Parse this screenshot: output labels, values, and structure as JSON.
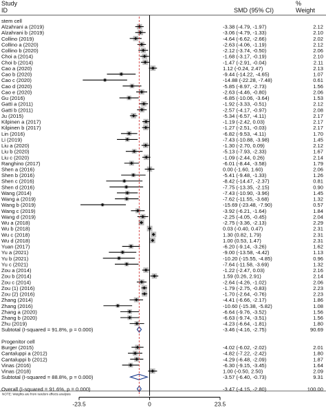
{
  "chart_data": {
    "type": "forest",
    "header": {
      "study_line1": "Study",
      "study_line2": "ID",
      "effect": "SMD (95% CI)",
      "weight_line1": "%",
      "weight_line2": "Weight"
    },
    "null_value": 0,
    "xlim": [
      -23.5,
      23.5
    ],
    "xticks": [
      -23.5,
      0,
      23.5
    ],
    "xtick_labels": [
      "-23.5",
      "0",
      "23.5"
    ],
    "overall_es": -3.47,
    "note": "NOTE: Weights are from random effects analysis",
    "rows": [
      {
        "type": "group",
        "label": "stem cell"
      },
      {
        "type": "study",
        "label": "Alzahrani a (2019)",
        "es": -3.38,
        "lo": -4.79,
        "hi": -1.97,
        "es_text": "-3.38 (-4.79, -1.97)",
        "weight": "2.12"
      },
      {
        "type": "study",
        "label": "Alzahrani b (2019)",
        "es": -3.06,
        "lo": -4.79,
        "hi": -1.33,
        "es_text": "-3.06 (-4.79, -1.33)",
        "weight": "2.10"
      },
      {
        "type": "study",
        "label": "Collino (2019)",
        "es": -4.64,
        "lo": -6.62,
        "hi": -2.66,
        "es_text": "-4.64 (-6.62, -2.66)",
        "weight": "2.02"
      },
      {
        "type": "study",
        "label": "Collino a (2020)",
        "es": -2.63,
        "lo": -4.06,
        "hi": -1.19,
        "es_text": "-2.63 (-4.06, -1.19)",
        "weight": "2.12"
      },
      {
        "type": "study",
        "label": "Collino b (2020)",
        "es": -2.12,
        "lo": -3.74,
        "hi": -0.5,
        "es_text": "-2.12 (-3.74, -0.50)",
        "weight": "2.06"
      },
      {
        "type": "study",
        "label": "Choi a (2014)",
        "es": -1.68,
        "lo": -3.17,
        "hi": -0.19,
        "es_text": "-1.68 (-3.17, -0.19)",
        "weight": "2.10"
      },
      {
        "type": "study",
        "label": "Choi b (2014)",
        "es": -1.47,
        "lo": -2.91,
        "hi": -0.04,
        "es_text": "-1.47 (-2.91, -0.04)",
        "weight": "2.11"
      },
      {
        "type": "study",
        "label": "Cao a (2020)",
        "es": 1.12,
        "lo": -0.24,
        "hi": 2.47,
        "es_text": "1.12 (-0.24, 2.47)",
        "weight": "2.13"
      },
      {
        "type": "study",
        "label": "Cao b (2020)",
        "es": -9.44,
        "lo": -14.22,
        "hi": -4.65,
        "es_text": "-9.44 (-14.22, -4.65)",
        "weight": "1.07"
      },
      {
        "type": "study",
        "label": "Cao c (2020)",
        "es": -14.88,
        "lo": -22.28,
        "hi": -7.48,
        "es_text": "-14.88 (-22.28, -7.48)",
        "weight": "0.61"
      },
      {
        "type": "study",
        "label": "Cao d (2020)",
        "es": -5.85,
        "lo": -8.97,
        "hi": -2.73,
        "es_text": "-5.85 (-8.97, -2.73)",
        "weight": "1.56"
      },
      {
        "type": "study",
        "label": "Cao e (2020)",
        "es": -2.63,
        "lo": -4.46,
        "hi": -0.8,
        "es_text": "-2.63 (-4.46, -0.80)",
        "weight": "2.06"
      },
      {
        "type": "study",
        "label": "Gu (2016)",
        "es": -6.85,
        "lo": -10.06,
        "hi": -3.64,
        "es_text": "-6.85 (-10.06, -3.64)",
        "weight": "1.53"
      },
      {
        "type": "study",
        "label": "Gatti a (2011)",
        "es": -1.92,
        "lo": -3.33,
        "hi": -0.51,
        "es_text": "-1.92 (-3.33, -0.51)",
        "weight": "2.12"
      },
      {
        "type": "study",
        "label": "Gatti b (2011)",
        "es": -2.57,
        "lo": -4.17,
        "hi": -0.97,
        "es_text": "-2.57 (-4.17, -0.97)",
        "weight": "2.08"
      },
      {
        "type": "study",
        "label": "Ju (2015)",
        "es": -5.34,
        "lo": -6.57,
        "hi": -4.11,
        "es_text": "-5.34 (-6.57, -4.11)",
        "weight": "2.17"
      },
      {
        "type": "study",
        "label": "Kilpinen a (2017)",
        "es": -1.19,
        "lo": -2.42,
        "hi": 0.03,
        "es_text": "-1.19 (-2.42, 0.03)",
        "weight": "2.17"
      },
      {
        "type": "study",
        "label": "Kilpinen b (2017)",
        "es": -1.27,
        "lo": -2.51,
        "hi": -0.03,
        "es_text": "-1.27 (-2.51, -0.03)",
        "weight": "2.17"
      },
      {
        "type": "study",
        "label": "Lin (2016)",
        "es": -6.82,
        "lo": -9.53,
        "hi": -4.11,
        "es_text": "-6.82 (-9.53, -4.11)",
        "weight": "1.70"
      },
      {
        "type": "study",
        "label": "Li (2019)",
        "es": -7.43,
        "lo": -10.88,
        "hi": -3.98,
        "es_text": "-7.43 (-10.88, -3.98)",
        "weight": "1.45"
      },
      {
        "type": "study",
        "label": "Liu a (2020)",
        "es": -1.3,
        "lo": -2.7,
        "hi": 0.09,
        "es_text": "-1.30 (-2.70, 0.09)",
        "weight": "2.12"
      },
      {
        "type": "study",
        "label": "Liu b (2020)",
        "es": -5.13,
        "lo": -7.93,
        "hi": -2.33,
        "es_text": "-5.13 (-7.93, -2.33)",
        "weight": "1.67"
      },
      {
        "type": "study",
        "label": "Liu c (2020)",
        "es": -1.09,
        "lo": -2.44,
        "hi": 0.26,
        "es_text": "-1.09 (-2.44, 0.26)",
        "weight": "2.14"
      },
      {
        "type": "study",
        "label": "Ranghino (2017)",
        "es": -6.01,
        "lo": -8.44,
        "hi": -3.58,
        "es_text": "-6.01 (-8.44, -3.58)",
        "weight": "1.79"
      },
      {
        "type": "study",
        "label": "Shen a (2016)",
        "es": 0.0,
        "lo": -1.6,
        "hi": 1.6,
        "es_text": "0.00 (-1.60, 1.60)",
        "weight": "2.06"
      },
      {
        "type": "study",
        "label": "Shen b (2016)",
        "es": -5.41,
        "lo": -9.48,
        "hi": -1.33,
        "es_text": "-5.41 (-9.48, -1.33)",
        "weight": "1.26"
      },
      {
        "type": "study",
        "label": "Shen c (2016)",
        "es": -8.42,
        "lo": -14.47,
        "hi": -2.37,
        "es_text": "-8.42 (-14.47, -2.37)",
        "weight": "0.81"
      },
      {
        "type": "study",
        "label": "Shen d (2016)",
        "es": -7.75,
        "lo": -13.35,
        "hi": -2.15,
        "es_text": "-7.75 (-13.35, -2.15)",
        "weight": "0.90"
      },
      {
        "type": "study",
        "label": "Wang (2014)",
        "es": -7.43,
        "lo": -10.9,
        "hi": -3.96,
        "es_text": "-7.43 (-10.90, -3.96)",
        "weight": "1.45"
      },
      {
        "type": "study",
        "label": "Wang  a (2019)",
        "es": -7.62,
        "lo": -11.55,
        "hi": -3.68,
        "es_text": "-7.62 (-11.55, -3.68)",
        "weight": "1.32"
      },
      {
        "type": "study",
        "label": "Wang  b (2019)",
        "es": -15.69,
        "lo": -23.48,
        "hi": -7.9,
        "es_text": "-15.69 (-23.48, -7.90)",
        "weight": "0.57"
      },
      {
        "type": "study",
        "label": "Wang  c (2019)",
        "es": -3.92,
        "lo": -6.21,
        "hi": -1.64,
        "es_text": "-3.92 (-6.21, -1.64)",
        "weight": "1.84"
      },
      {
        "type": "study",
        "label": "Wang  d (2019)",
        "es": -2.25,
        "lo": -4.05,
        "hi": -0.45,
        "es_text": "-2.25 (-4.05, -0.45)",
        "weight": "2.04"
      },
      {
        "type": "study",
        "label": "Wu a (2018)",
        "es": -2.75,
        "lo": -3.36,
        "hi": -2.13,
        "es_text": "-2.75 (-3.36, -2.13)",
        "weight": "2.29"
      },
      {
        "type": "study",
        "label": "Wu b (2018)",
        "es": 0.03,
        "lo": -0.4,
        "hi": 0.47,
        "es_text": "0.03 (-0.40, 0.47)",
        "weight": "2.31"
      },
      {
        "type": "study",
        "label": "Wu c (2018)",
        "es": 1.3,
        "lo": 0.82,
        "hi": 1.79,
        "es_text": "1.30 (0.82, 1.79)",
        "weight": "2.31"
      },
      {
        "type": "study",
        "label": "Wu d (2018)",
        "es": 1.0,
        "lo": 0.53,
        "hi": 1.47,
        "es_text": "1.00 (0.53, 1.47)",
        "weight": "2.31"
      },
      {
        "type": "study",
        "label": "Yuan (2017)",
        "es": -6.2,
        "lo": -9.14,
        "hi": -3.26,
        "es_text": "-6.20 (-9.14, -3.26)",
        "weight": "1.62"
      },
      {
        "type": "study",
        "label": "Yu a (2021)",
        "es": -9.0,
        "lo": -13.58,
        "hi": -4.42,
        "es_text": "-9.00 (-13.58, -4.42)",
        "weight": "1.13"
      },
      {
        "type": "study",
        "label": "Yu b (2021)",
        "es": -10.2,
        "lo": -15.55,
        "hi": -4.85,
        "es_text": "-10.20 (-15.55, -4.85)",
        "weight": "0.96"
      },
      {
        "type": "study",
        "label": "Yu c (2021)",
        "es": -7.64,
        "lo": -11.58,
        "hi": -3.69,
        "es_text": "-7.64 (-11.58, -3.69)",
        "weight": "1.32"
      },
      {
        "type": "study",
        "label": "Zou a (2014)",
        "es": -1.22,
        "lo": -2.47,
        "hi": 0.03,
        "es_text": "-1.22 (-2.47, 0.03)",
        "weight": "2.16"
      },
      {
        "type": "study",
        "label": "Zou b (2014)",
        "es": 1.59,
        "lo": 0.26,
        "hi": 2.91,
        "es_text": "1.59 (0.26, 2.91)",
        "weight": "2.14"
      },
      {
        "type": "study",
        "label": "Zou c (2014)",
        "es": -2.64,
        "lo": -4.26,
        "hi": -1.02,
        "es_text": "-2.64 (-4.26, -1.02)",
        "weight": "2.06"
      },
      {
        "type": "study",
        "label": "Zou (1) (2016)",
        "es": -1.79,
        "lo": -2.75,
        "hi": -0.83,
        "es_text": "-1.79 (-2.75, -0.83)",
        "weight": "2.23"
      },
      {
        "type": "study",
        "label": "Zou (2) (2016)",
        "es": -1.7,
        "lo": -2.64,
        "hi": -0.76,
        "es_text": "-1.70 (-2.64, -0.76)",
        "weight": "2.23"
      },
      {
        "type": "study",
        "label": "Zhang (2014)",
        "es": -4.41,
        "lo": -6.66,
        "hi": -2.17,
        "es_text": "-4.41 (-6.66, -2.17)",
        "weight": "1.86"
      },
      {
        "type": "study",
        "label": "Zhang (2016)",
        "es": -10.6,
        "lo": -15.38,
        "hi": -5.82,
        "es_text": "-10.60 (-15.38, -5.82)",
        "weight": "1.08"
      },
      {
        "type": "study",
        "label": "Zhang a (2020)",
        "es": -6.64,
        "lo": -9.76,
        "hi": -3.52,
        "es_text": "-6.64 (-9.76, -3.52)",
        "weight": "1.56"
      },
      {
        "type": "study",
        "label": "Zhang b (2020)",
        "es": -6.63,
        "lo": -9.74,
        "hi": -3.51,
        "es_text": "-6.63 (-9.74, -3.51)",
        "weight": "1.56"
      },
      {
        "type": "study",
        "label": "Zhu (2019)",
        "es": -4.23,
        "lo": -6.64,
        "hi": -1.81,
        "es_text": "-4.23 (-6.64, -1.81)",
        "weight": "1.80"
      },
      {
        "type": "subtotal",
        "label": "Subtotal  (I-squared = 91.8%, p = 0.000)",
        "es": -3.46,
        "lo": -4.16,
        "hi": -2.75,
        "es_text": "-3.46 (-4.16, -2.75)",
        "weight": "90.69"
      },
      {
        "type": "blank"
      },
      {
        "type": "group",
        "label": "Progenitor cell"
      },
      {
        "type": "study",
        "label": "Burger (2015)",
        "es": -4.02,
        "lo": -6.02,
        "hi": -2.02,
        "es_text": "-4.02 (-6.02, -2.02)",
        "weight": "2.01"
      },
      {
        "type": "study",
        "label": "Cantaluppi a (2012)",
        "es": -4.82,
        "lo": -7.22,
        "hi": -2.42,
        "es_text": "-4.82 (-7.22, -2.42)",
        "weight": "1.80"
      },
      {
        "type": "study",
        "label": "Cantaluppi b (2012)",
        "es": -4.29,
        "lo": -6.48,
        "hi": -2.09,
        "es_text": "-4.29 (-6.48, -2.09)",
        "weight": "1.87"
      },
      {
        "type": "study",
        "label": "Vinas (2016)",
        "es": -6.3,
        "lo": -9.15,
        "hi": -3.45,
        "es_text": "-6.30 (-9.15, -3.45)",
        "weight": "1.64"
      },
      {
        "type": "study",
        "label": "Vinas (2018)",
        "es": 1.0,
        "lo": -0.5,
        "hi": 2.5,
        "es_text": "1.00 (-0.50, 2.50)",
        "weight": "2.09"
      },
      {
        "type": "subtotal",
        "label": "Subtotal  (I-squared = 88.8%, p = 0.000)",
        "es": -3.57,
        "lo": -6.4,
        "hi": -0.73,
        "es_text": "-3.57 (-6.40, -0.73)",
        "weight": "9.31"
      },
      {
        "type": "blank"
      },
      {
        "type": "overall",
        "label": "Overall  (I-squared = 91.6%, p = 0.000)",
        "es": -3.47,
        "lo": -4.15,
        "hi": -2.8,
        "es_text": "-3.47 (-4.15, -2.80)",
        "weight": "100.00"
      }
    ]
  }
}
